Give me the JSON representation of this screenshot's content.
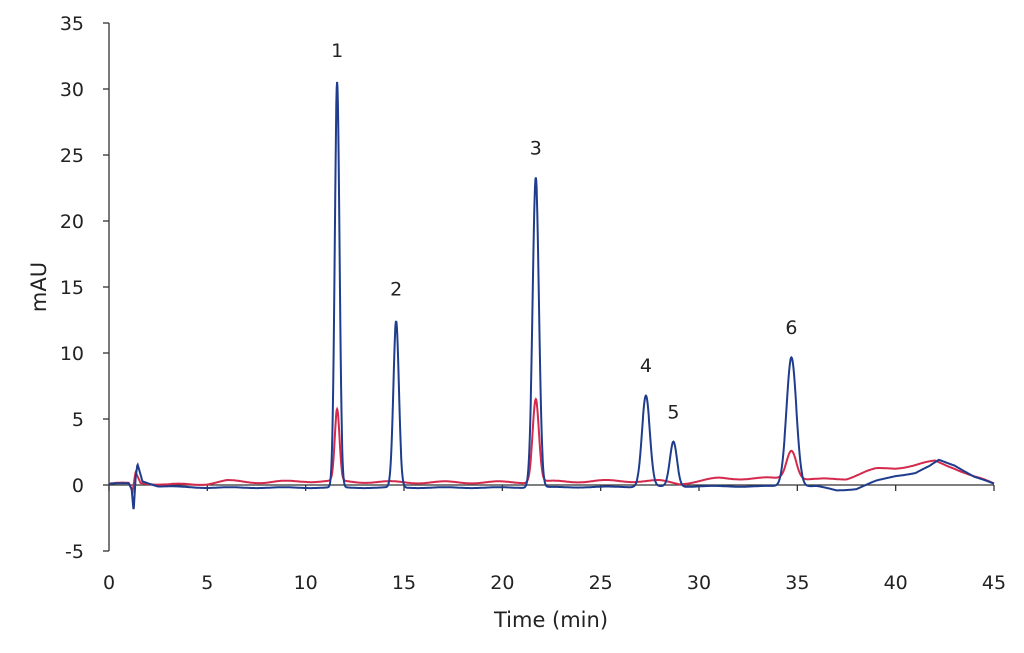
{
  "chart_data": {
    "type": "line",
    "title": "",
    "xlabel": "Time (min)",
    "ylabel": "mAU",
    "xlim": [
      0,
      45
    ],
    "ylim": [
      -5,
      35
    ],
    "xticks": [
      0,
      5,
      10,
      15,
      20,
      25,
      30,
      35,
      40,
      45
    ],
    "yticks": [
      -5,
      0,
      5,
      10,
      15,
      20,
      25,
      30,
      35
    ],
    "grid": false,
    "legend": "none",
    "peak_labels": [
      {
        "label": "1",
        "x": 11.6,
        "y": 30.7
      },
      {
        "label": "2",
        "x": 14.6,
        "y": 12.6
      },
      {
        "label": "3",
        "x": 21.7,
        "y": 23.3
      },
      {
        "label": "4",
        "x": 27.3,
        "y": 6.8
      },
      {
        "label": "5",
        "x": 28.7,
        "y": 3.3
      },
      {
        "label": "6",
        "x": 34.7,
        "y": 9.7
      }
    ],
    "series": [
      {
        "name": "blue trace",
        "color": "#1f3d8c",
        "baseline": [
          [
            0,
            0.1
          ],
          [
            1.0,
            0.1
          ],
          [
            1.15,
            -0.3
          ],
          [
            1.25,
            -2.0
          ],
          [
            1.35,
            0.5
          ],
          [
            1.45,
            1.6
          ],
          [
            1.7,
            0.3
          ],
          [
            2.5,
            -0.1
          ],
          [
            5,
            -0.2
          ],
          [
            10,
            -0.2
          ],
          [
            20,
            -0.2
          ],
          [
            30,
            -0.1
          ],
          [
            36,
            -0.1
          ],
          [
            37,
            -0.4
          ],
          [
            38,
            -0.3
          ],
          [
            39,
            0.3
          ],
          [
            40,
            0.7
          ],
          [
            41,
            0.9
          ],
          [
            41.7,
            1.4
          ],
          [
            42.2,
            1.9
          ],
          [
            43,
            1.5
          ],
          [
            44,
            0.6
          ],
          [
            45,
            0.1
          ]
        ],
        "peaks": [
          [
            11.6,
            30.7,
            0.12
          ],
          [
            14.6,
            12.6,
            0.14
          ],
          [
            21.7,
            23.5,
            0.16
          ],
          [
            27.3,
            6.9,
            0.2
          ],
          [
            28.7,
            3.4,
            0.18
          ],
          [
            34.7,
            9.8,
            0.25
          ]
        ]
      },
      {
        "name": "red trace",
        "color": "#d42a4e",
        "baseline": [
          [
            0,
            0.1
          ],
          [
            1.0,
            0.1
          ],
          [
            1.2,
            -0.5
          ],
          [
            1.35,
            1.0
          ],
          [
            1.6,
            0.2
          ],
          [
            3,
            0.0
          ],
          [
            5,
            0.1
          ],
          [
            6,
            0.3
          ],
          [
            8,
            0.2
          ],
          [
            10,
            0.3
          ],
          [
            15,
            0.2
          ],
          [
            20,
            0.2
          ],
          [
            25,
            0.3
          ],
          [
            28,
            0.3
          ],
          [
            29,
            0.1
          ],
          [
            30,
            0.3
          ],
          [
            31,
            0.5
          ],
          [
            34,
            0.5
          ],
          [
            36,
            0.4
          ],
          [
            37.5,
            0.5
          ],
          [
            38.5,
            1.0
          ],
          [
            39,
            1.2
          ],
          [
            40,
            1.3
          ],
          [
            41,
            1.5
          ],
          [
            42,
            1.8
          ],
          [
            43,
            1.3
          ],
          [
            44,
            0.6
          ],
          [
            45,
            0.1
          ]
        ],
        "peaks": [
          [
            11.6,
            5.4,
            0.12
          ],
          [
            21.7,
            6.3,
            0.16
          ],
          [
            34.7,
            2.2,
            0.25
          ]
        ]
      }
    ]
  }
}
